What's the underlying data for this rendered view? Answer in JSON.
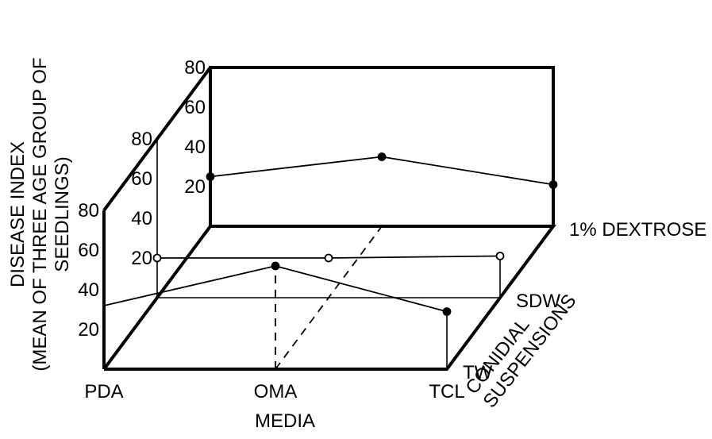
{
  "chart_data": {
    "type": "line",
    "title": "",
    "xlabel": "MEDIA",
    "ylabel": "DISEASE INDEX (MEAN OF THREE AGE GROUP OF SEEDLINGS)",
    "ylabel_lines": [
      "DISEASE INDEX",
      "(MEAN OF THREE AGE GROUP OF",
      "SEEDLINGS)"
    ],
    "zlabel": "CONIDIAL SUSPENSIONS",
    "zlabel_lines": [
      "CONIDIAL",
      "SUSPENSIONS"
    ],
    "categories": [
      "PDA",
      "OMA",
      "TCL"
    ],
    "depth_categories": [
      "TW",
      "SDW",
      "1% DEXTROSE"
    ],
    "y_ticks": {
      "TW": [
        "20",
        "40",
        "60",
        "80"
      ],
      "SDW": [
        "20",
        "40",
        "60",
        "80"
      ],
      "1% DEXTROSE": [
        "20",
        "40",
        "60",
        "80"
      ]
    },
    "ylim": [
      0,
      80
    ],
    "series": [
      {
        "name": "TW",
        "values": [
          32,
          52,
          29
        ],
        "marker": "filled"
      },
      {
        "name": "SDW",
        "values": [
          20,
          20,
          21
        ],
        "marker": "open"
      },
      {
        "name": "1% DEXTROSE",
        "values": [
          25,
          35,
          21
        ],
        "marker": "filled"
      }
    ],
    "grid": false,
    "legend": "none"
  }
}
